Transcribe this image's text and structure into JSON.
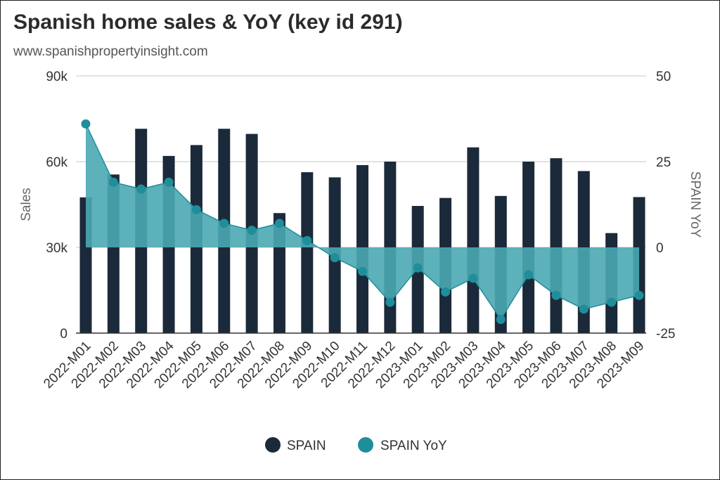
{
  "title": "Spanish home sales & YoY (key id 291)",
  "subtitle": "www.spanishpropertyinsight.com",
  "colors": {
    "bar": "#1b2a3a",
    "line": "#1f8e9b",
    "area": "#4ba8b3",
    "grid": "#e3e3e3",
    "axis": "#333333"
  },
  "chart_data": {
    "type": "bar",
    "categories": [
      "2022-M01",
      "2022-M02",
      "2022-M03",
      "2022-M04",
      "2022-M05",
      "2022-M06",
      "2022-M07",
      "2022-M08",
      "2022-M09",
      "2022-M10",
      "2022-M11",
      "2022-M12",
      "2023-M01",
      "2023-M02",
      "2023-M03",
      "2023-M04",
      "2023-M05",
      "2023-M06",
      "2023-M07",
      "2023-M08",
      "2023-M09"
    ],
    "series": [
      {
        "name": "SPAIN",
        "type": "bar",
        "axis": "left",
        "values": [
          47500,
          55500,
          71500,
          62000,
          65800,
          71500,
          69700,
          42000,
          56300,
          54500,
          58800,
          60000,
          44500,
          47300,
          65000,
          48000,
          60000,
          61200,
          56700,
          35000,
          47600
        ]
      },
      {
        "name": "SPAIN YoY",
        "type": "area",
        "axis": "right",
        "values": [
          36,
          19,
          17,
          19,
          11,
          7,
          5,
          7,
          2,
          -3,
          -7,
          -16,
          -6,
          -13,
          -9,
          -21,
          -8,
          -14,
          -18,
          -16,
          -14
        ]
      }
    ],
    "xlabel": "",
    "ylabel": "Sales",
    "y2label": "SPAIN YoY",
    "ylim": [
      0,
      90000
    ],
    "y2lim": [
      -25,
      50
    ],
    "yticks": [
      "0",
      "30k",
      "60k",
      "90k"
    ],
    "y2ticks": [
      "-25",
      "0",
      "25",
      "50"
    ],
    "grid": true,
    "legend": "bottom-center"
  }
}
